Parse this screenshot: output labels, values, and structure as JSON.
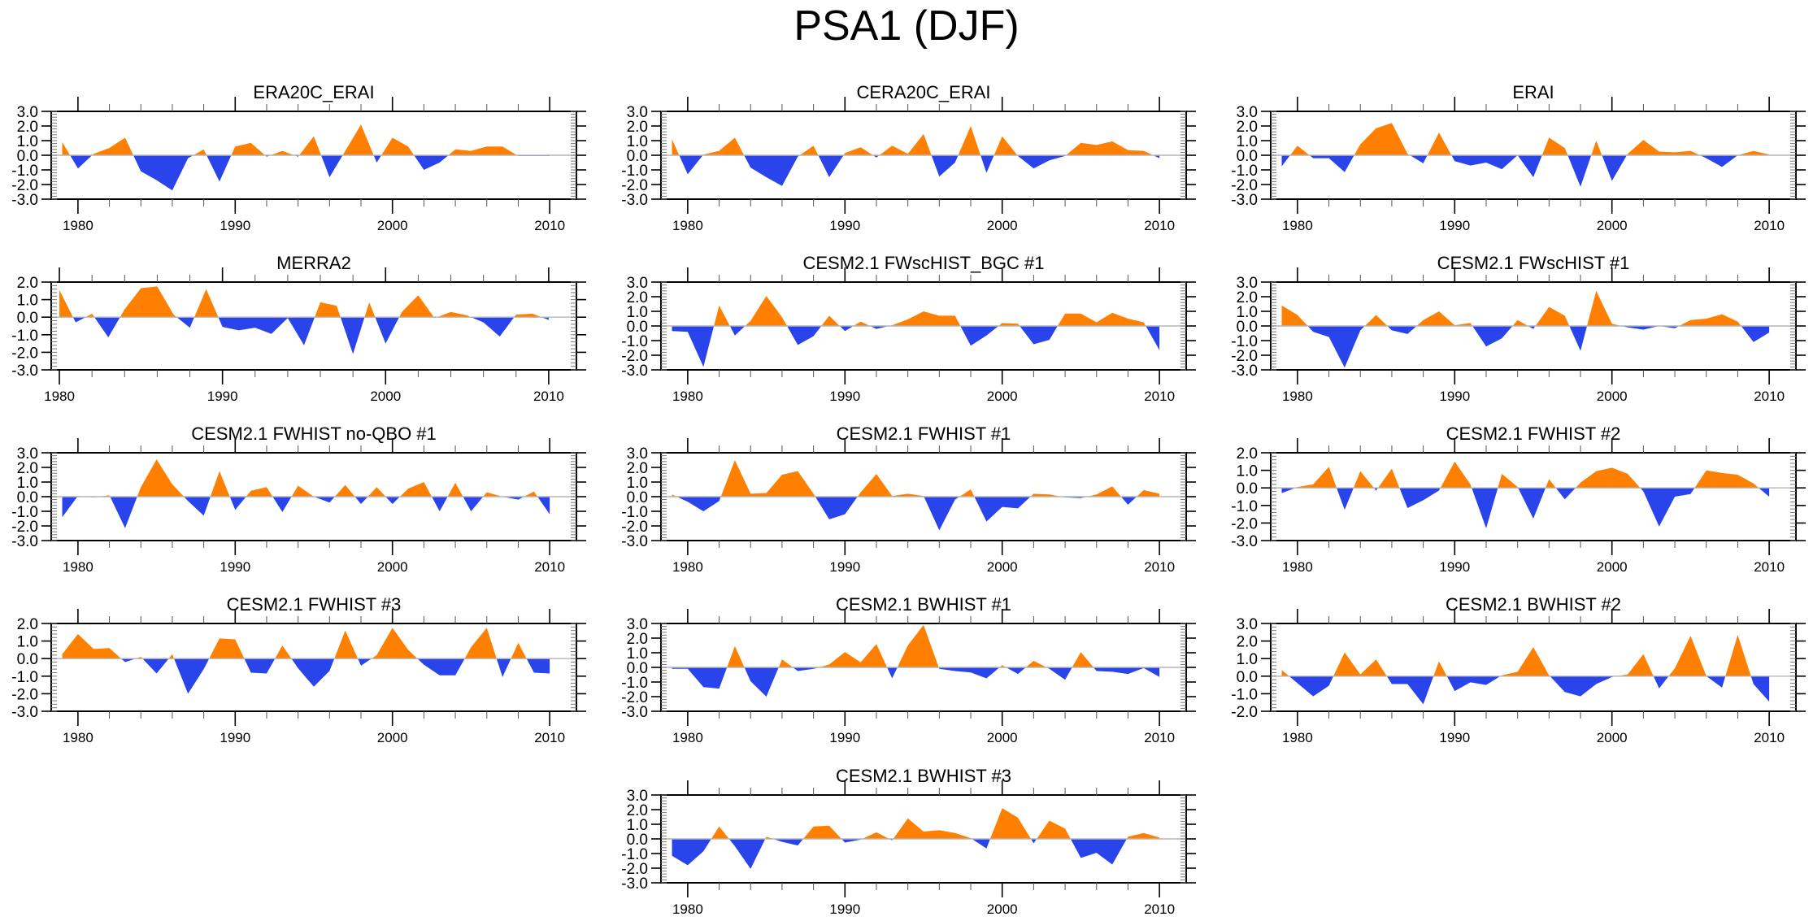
{
  "title": "PSA1 (DJF)",
  "colors": {
    "positive": "#ff8000",
    "negative": "#2a44eb",
    "zero_line": "#b5b5b5",
    "frame": "#000000"
  },
  "chart_data": {
    "type": "area",
    "title": "PSA1 (DJF)",
    "layout": "multi-panel grid, 3 columns, 5 rows (last row has a single centered panel)",
    "fill_rule": "values above 0 filled orange, below 0 filled blue",
    "xlabel": "",
    "ylabel": "",
    "grid": false,
    "panels": [
      {
        "name": "ERA20C_ERAI",
        "xlim": [
          1978.3,
          2011.7
        ],
        "ylim": [
          -3.0,
          3.0
        ],
        "xticks": [
          1980,
          1990,
          2000,
          2010
        ],
        "yticks": [
          "3.0",
          "2.0",
          "1.0",
          "0.0",
          "-1.0",
          "-2.0",
          "-3.0"
        ],
        "x": [
          1979,
          1980,
          1981,
          1982,
          1983,
          1984,
          1985,
          1986,
          1987,
          1988,
          1989,
          1990,
          1991,
          1992,
          1993,
          1994,
          1995,
          1996,
          1997,
          1998,
          1999,
          2000,
          2001,
          2002,
          2003,
          2004,
          2005,
          2006,
          2007,
          2008,
          2009,
          2010
        ],
        "values": [
          0.9,
          -0.9,
          0.1,
          0.5,
          1.2,
          -1.1,
          -1.7,
          -2.4,
          -0.2,
          0.4,
          -1.8,
          0.6,
          0.85,
          -0.1,
          0.3,
          -0.1,
          1.3,
          -1.5,
          0.3,
          2.1,
          -0.5,
          1.2,
          0.6,
          -1.0,
          -0.5,
          0.4,
          0.3,
          0.6,
          0.6,
          -0.05,
          -0.05,
          -0.05
        ]
      },
      {
        "name": "CERA20C_ERAI",
        "xlim": [
          1978.3,
          2011.7
        ],
        "ylim": [
          -3.0,
          3.0
        ],
        "xticks": [
          1980,
          1990,
          2000,
          2010
        ],
        "yticks": [
          "3.0",
          "2.0",
          "1.0",
          "0.0",
          "-1.0",
          "-2.0",
          "-3.0"
        ],
        "x": [
          1979,
          1980,
          1981,
          1982,
          1983,
          1984,
          1985,
          1986,
          1987,
          1988,
          1989,
          1990,
          1991,
          1992,
          1993,
          1994,
          1995,
          1996,
          1997,
          1998,
          1999,
          2000,
          2001,
          2002,
          2003,
          2004,
          2005,
          2006,
          2007,
          2008,
          2009,
          2010
        ],
        "values": [
          1.1,
          -1.3,
          0.05,
          0.3,
          1.2,
          -0.85,
          -1.5,
          -2.1,
          -0.1,
          0.65,
          -1.5,
          0.15,
          0.55,
          -0.15,
          0.65,
          0.1,
          1.45,
          -1.45,
          -0.5,
          2.0,
          -1.2,
          1.3,
          -0.05,
          -0.9,
          -0.35,
          -0.05,
          0.85,
          0.7,
          0.95,
          0.35,
          0.3,
          -0.2
        ]
      },
      {
        "name": "ERAI",
        "xlim": [
          1978.3,
          2011.7
        ],
        "ylim": [
          -3.0,
          3.0
        ],
        "xticks": [
          1980,
          1990,
          2000,
          2010
        ],
        "yticks": [
          "3.0",
          "2.0",
          "1.0",
          "0.0",
          "-1.0",
          "-2.0",
          "-3.0"
        ],
        "x": [
          1979,
          1980,
          1981,
          1982,
          1983,
          1984,
          1985,
          1986,
          1987,
          1988,
          1989,
          1990,
          1991,
          1992,
          1993,
          1994,
          1995,
          1996,
          1997,
          1998,
          1999,
          2000,
          2001,
          2002,
          2003,
          2004,
          2005,
          2006,
          2007,
          2008,
          2009,
          2010
        ],
        "values": [
          -0.75,
          0.65,
          -0.2,
          -0.2,
          -1.15,
          0.75,
          1.85,
          2.2,
          0.1,
          -0.55,
          1.55,
          -0.4,
          -0.7,
          -0.5,
          -0.95,
          0.0,
          -1.5,
          1.2,
          0.5,
          -2.15,
          1.0,
          -1.75,
          0.1,
          1.05,
          0.25,
          0.2,
          0.3,
          -0.2,
          -0.8,
          0.0,
          0.3,
          0.05
        ]
      },
      {
        "name": "MERRA2",
        "xlim": [
          1979.5,
          2011.7
        ],
        "ylim": [
          -3.0,
          2.0
        ],
        "xticks": [
          1980,
          1990,
          2000,
          2010
        ],
        "yticks": [
          "2.0",
          "1.0",
          "0.0",
          "-1.0",
          "-2.0",
          "-3.0"
        ],
        "x": [
          1980,
          1981,
          1982,
          1983,
          1984,
          1985,
          1986,
          1987,
          1988,
          1989,
          1990,
          1991,
          1992,
          1993,
          1994,
          1995,
          1996,
          1997,
          1998,
          1999,
          2000,
          2001,
          2002,
          2003,
          2004,
          2005,
          2006,
          2007,
          2008,
          2009,
          2010
        ],
        "values": [
          1.55,
          -0.3,
          0.2,
          -1.15,
          0.45,
          1.65,
          1.75,
          0.15,
          -0.6,
          1.6,
          -0.55,
          -0.75,
          -0.6,
          -0.95,
          -0.05,
          -1.6,
          0.85,
          0.65,
          -2.1,
          0.85,
          -1.5,
          0.3,
          1.25,
          -0.05,
          0.3,
          0.1,
          -0.3,
          -1.1,
          0.15,
          0.2,
          -0.15
        ]
      },
      {
        "name": "CESM2.1 FWscHIST_BGC #1",
        "xlim": [
          1978.3,
          2011.7
        ],
        "ylim": [
          -3.0,
          3.0
        ],
        "xticks": [
          1980,
          1990,
          2000,
          2010
        ],
        "yticks": [
          "3.0",
          "2.0",
          "1.0",
          "0.0",
          "-1.0",
          "-2.0",
          "-3.0"
        ],
        "x": [
          1979,
          1980,
          1981,
          1982,
          1983,
          1984,
          1985,
          1986,
          1987,
          1988,
          1989,
          1990,
          1991,
          1992,
          1993,
          1994,
          1995,
          1996,
          1997,
          1998,
          1999,
          2000,
          2001,
          2002,
          2003,
          2004,
          2005,
          2006,
          2007,
          2008,
          2009,
          2010
        ],
        "values": [
          -0.35,
          -0.4,
          -2.8,
          1.4,
          -0.65,
          0.35,
          2.05,
          0.6,
          -1.3,
          -0.7,
          0.7,
          -0.35,
          0.3,
          -0.2,
          0.05,
          0.45,
          1.0,
          0.7,
          0.7,
          -1.35,
          -0.65,
          0.2,
          0.15,
          -1.25,
          -0.95,
          0.85,
          0.85,
          0.25,
          0.9,
          0.5,
          0.25,
          -1.65
        ]
      },
      {
        "name": "CESM2.1 FWscHIST #1",
        "xlim": [
          1978.3,
          2011.7
        ],
        "ylim": [
          -3.0,
          3.0
        ],
        "xticks": [
          1980,
          1990,
          2000,
          2010
        ],
        "yticks": [
          "3.0",
          "2.0",
          "1.0",
          "0.0",
          "-1.0",
          "-2.0",
          "-3.0"
        ],
        "x": [
          1979,
          1980,
          1981,
          1982,
          1983,
          1984,
          1985,
          1986,
          1987,
          1988,
          1989,
          1990,
          1991,
          1992,
          1993,
          1994,
          1995,
          1996,
          1997,
          1998,
          1999,
          2000,
          2001,
          2002,
          2003,
          2004,
          2005,
          2006,
          2007,
          2008,
          2009,
          2010
        ],
        "values": [
          1.4,
          0.75,
          -0.4,
          -0.75,
          -2.85,
          -0.3,
          0.75,
          -0.3,
          -0.55,
          0.4,
          1.0,
          0.05,
          0.2,
          -1.4,
          -0.85,
          0.4,
          -0.2,
          1.3,
          0.7,
          -1.7,
          2.4,
          0.15,
          -0.1,
          -0.25,
          0.0,
          -0.15,
          0.4,
          0.5,
          0.8,
          0.3,
          -1.1,
          -0.45
        ]
      },
      {
        "name": "CESM2.1 FWHIST no-QBO #1",
        "xlim": [
          1978.3,
          2011.7
        ],
        "ylim": [
          -3.0,
          3.0
        ],
        "xticks": [
          1980,
          1990,
          2000,
          2010
        ],
        "yticks": [
          "3.0",
          "2.0",
          "1.0",
          "0.0",
          "-1.0",
          "-2.0",
          "-3.0"
        ],
        "x": [
          1979,
          1980,
          1981,
          1982,
          1983,
          1984,
          1985,
          1986,
          1987,
          1988,
          1989,
          1990,
          1991,
          1992,
          1993,
          1994,
          1995,
          1996,
          1997,
          1998,
          1999,
          2000,
          2001,
          2002,
          2003,
          2004,
          2005,
          2006,
          2007,
          2008,
          2009,
          2010
        ],
        "values": [
          -1.4,
          0.05,
          -0.05,
          0.1,
          -2.15,
          0.65,
          2.55,
          0.85,
          -0.3,
          -1.3,
          1.75,
          -0.9,
          0.4,
          0.65,
          -1.05,
          0.75,
          0.0,
          -0.4,
          0.8,
          -0.5,
          0.65,
          -0.5,
          0.55,
          1.0,
          -1.0,
          0.95,
          -1.0,
          0.3,
          0.0,
          -0.2,
          0.35,
          -1.2
        ]
      },
      {
        "name": "CESM2.1 FWHIST #1",
        "xlim": [
          1978.3,
          2011.7
        ],
        "ylim": [
          -3.0,
          3.0
        ],
        "xticks": [
          1980,
          1990,
          2000,
          2010
        ],
        "yticks": [
          "3.0",
          "2.0",
          "1.0",
          "0.0",
          "-1.0",
          "-2.0",
          "-3.0"
        ],
        "x": [
          1979,
          1980,
          1981,
          1982,
          1983,
          1984,
          1985,
          1986,
          1987,
          1988,
          1989,
          1990,
          1991,
          1992,
          1993,
          1994,
          1995,
          1996,
          1997,
          1998,
          1999,
          2000,
          2001,
          2002,
          2003,
          2004,
          2005,
          2006,
          2007,
          2008,
          2009,
          2010
        ],
        "values": [
          0.15,
          -0.35,
          -1.0,
          -0.3,
          2.5,
          0.2,
          0.25,
          1.5,
          1.75,
          0.2,
          -1.55,
          -1.2,
          0.3,
          1.55,
          0.05,
          0.2,
          0.05,
          -2.3,
          -0.2,
          0.5,
          -1.7,
          -0.7,
          -0.8,
          0.2,
          0.15,
          -0.05,
          -0.1,
          0.15,
          0.7,
          -0.55,
          0.45,
          0.2
        ]
      },
      {
        "name": "CESM2.1 FWHIST #2",
        "xlim": [
          1978.3,
          2011.7
        ],
        "ylim": [
          -3.0,
          2.0
        ],
        "xticks": [
          1980,
          1990,
          2000,
          2010
        ],
        "yticks": [
          "2.0",
          "1.0",
          "0.0",
          "-1.0",
          "-2.0",
          "-3.0"
        ],
        "x": [
          1979,
          1980,
          1981,
          1982,
          1983,
          1984,
          1985,
          1986,
          1987,
          1988,
          1989,
          1990,
          1991,
          1992,
          1993,
          1994,
          1995,
          1996,
          1997,
          1998,
          1999,
          2000,
          2001,
          2002,
          2003,
          2004,
          2005,
          2006,
          2007,
          2008,
          2009,
          2010
        ],
        "values": [
          -0.3,
          0.05,
          0.2,
          1.2,
          -1.25,
          0.95,
          -0.15,
          1.1,
          -1.15,
          -0.7,
          -0.15,
          1.5,
          0.2,
          -2.3,
          0.8,
          0.05,
          -1.75,
          0.5,
          -0.65,
          0.3,
          0.95,
          1.15,
          0.8,
          -0.2,
          -2.2,
          -0.5,
          -0.35,
          1.0,
          0.85,
          0.75,
          0.25,
          -0.5
        ]
      },
      {
        "name": "CESM2.1 FWHIST #3",
        "xlim": [
          1978.3,
          2011.7
        ],
        "ylim": [
          -3.0,
          2.0
        ],
        "xticks": [
          1980,
          1990,
          2000,
          2010
        ],
        "yticks": [
          "2.0",
          "1.0",
          "0.0",
          "-1.0",
          "-2.0",
          "-3.0"
        ],
        "x": [
          1979,
          1980,
          1981,
          1982,
          1983,
          1984,
          1985,
          1986,
          1987,
          1988,
          1989,
          1990,
          1991,
          1992,
          1993,
          1994,
          1995,
          1996,
          1997,
          1998,
          1999,
          2000,
          2001,
          2002,
          2003,
          2004,
          2005,
          2006,
          2007,
          2008,
          2009,
          2010
        ],
        "values": [
          0.25,
          1.4,
          0.55,
          0.6,
          -0.2,
          0.1,
          -0.85,
          0.25,
          -2.0,
          -0.6,
          1.15,
          1.1,
          -0.8,
          -0.85,
          0.75,
          -0.55,
          -1.6,
          -0.7,
          1.6,
          -0.4,
          0.2,
          1.75,
          0.5,
          -0.35,
          -0.95,
          -0.95,
          0.65,
          1.75,
          -1.05,
          0.9,
          -0.8,
          -0.85
        ]
      },
      {
        "name": "CESM2.1 BWHIST #1",
        "xlim": [
          1978.3,
          2011.7
        ],
        "ylim": [
          -3.0,
          3.0
        ],
        "xticks": [
          1980,
          1990,
          2000,
          2010
        ],
        "yticks": [
          "3.0",
          "2.0",
          "1.0",
          "0.0",
          "-1.0",
          "-2.0",
          "-3.0"
        ],
        "x": [
          1979,
          1980,
          1981,
          1982,
          1983,
          1984,
          1985,
          1986,
          1987,
          1988,
          1989,
          1990,
          1991,
          1992,
          1993,
          1994,
          1995,
          1996,
          1997,
          1998,
          1999,
          2000,
          2001,
          2002,
          2003,
          2004,
          2005,
          2006,
          2007,
          2008,
          2009,
          2010
        ],
        "values": [
          -0.1,
          -0.1,
          -1.35,
          -1.45,
          1.45,
          -0.95,
          -2.0,
          0.55,
          -0.25,
          -0.1,
          0.2,
          1.05,
          0.35,
          1.6,
          -0.75,
          1.5,
          2.9,
          -0.1,
          -0.25,
          -0.35,
          -0.75,
          0.15,
          -0.45,
          0.45,
          -0.1,
          -0.85,
          1.05,
          -0.25,
          -0.3,
          -0.45,
          -0.05,
          -0.65
        ]
      },
      {
        "name": "CESM2.1 BWHIST #2",
        "xlim": [
          1978.3,
          2011.7
        ],
        "ylim": [
          -2.0,
          3.0
        ],
        "xticks": [
          1980,
          1990,
          2000,
          2010
        ],
        "yticks": [
          "3.0",
          "2.0",
          "1.0",
          "0.0",
          "-1.0",
          "-2.0"
        ],
        "x": [
          1979,
          1980,
          1981,
          1982,
          1983,
          1984,
          1985,
          1986,
          1987,
          1988,
          1989,
          1990,
          1991,
          1992,
          1993,
          1994,
          1995,
          1996,
          1997,
          1998,
          1999,
          2000,
          2001,
          2002,
          2003,
          2004,
          2005,
          2006,
          2007,
          2008,
          2009,
          2010
        ],
        "values": [
          0.35,
          -0.4,
          -1.15,
          -0.55,
          1.35,
          0.1,
          0.95,
          -0.45,
          -0.45,
          -1.6,
          0.85,
          -0.85,
          -0.35,
          -0.5,
          0.05,
          0.25,
          1.65,
          0.05,
          -0.9,
          -1.15,
          -0.45,
          -0.05,
          0.1,
          1.25,
          -0.7,
          0.45,
          2.3,
          0.0,
          -0.65,
          2.35,
          -0.45,
          -1.45
        ]
      },
      {
        "name": "CESM2.1 BWHIST #3",
        "xlim": [
          1978.3,
          2011.7
        ],
        "ylim": [
          -3.0,
          3.0
        ],
        "xticks": [
          1980,
          1990,
          2000,
          2010
        ],
        "yticks": [
          "3.0",
          "2.0",
          "1.0",
          "0.0",
          "-1.0",
          "-2.0",
          "-3.0"
        ],
        "x": [
          1979,
          1980,
          1981,
          1982,
          1983,
          1984,
          1985,
          1986,
          1987,
          1988,
          1989,
          1990,
          1991,
          1992,
          1993,
          1994,
          1995,
          1996,
          1997,
          1998,
          1999,
          2000,
          2001,
          2002,
          2003,
          2004,
          2005,
          2006,
          2007,
          2008,
          2009,
          2010
        ],
        "values": [
          -1.15,
          -1.8,
          -0.85,
          0.85,
          -0.5,
          -2.05,
          0.15,
          -0.2,
          -0.45,
          0.85,
          0.9,
          -0.25,
          -0.05,
          0.45,
          -0.1,
          1.4,
          0.5,
          0.6,
          0.4,
          0.05,
          -0.65,
          2.1,
          1.45,
          -0.3,
          1.25,
          0.7,
          -1.3,
          -0.95,
          -1.75,
          0.15,
          0.4,
          0.1
        ]
      }
    ]
  }
}
